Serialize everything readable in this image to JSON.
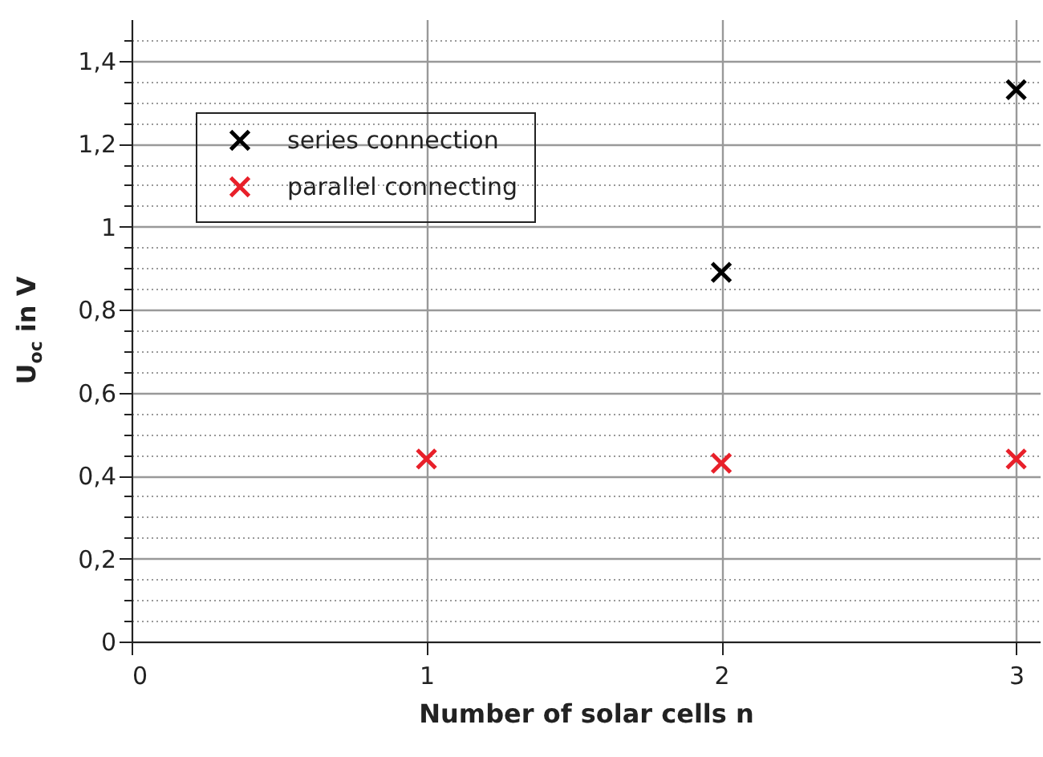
{
  "chart_data": {
    "type": "scatter",
    "xlabel": "Number of solar cells n",
    "ylabel": "U$_{oc}$ in V",
    "xlim": [
      0,
      3.08
    ],
    "xticks": [
      0,
      1,
      2,
      3
    ],
    "ylim": [
      0,
      1.5
    ],
    "yticks": [
      0,
      {
        "value": 0.05,
        "label": null
      },
      {
        "value": 0.1,
        "label": null
      },
      {
        "value": 0.15,
        "label": null
      },
      {
        "value": 0.2,
        "label": "0,2"
      },
      {
        "value": 0.25,
        "label": null
      },
      {
        "value": 0.3,
        "label": null
      },
      {
        "value": 0.35,
        "label": null
      },
      {
        "value": 0.4,
        "label": "0,4"
      },
      {
        "value": 0.45,
        "label": null
      },
      {
        "value": 0.5,
        "label": null
      },
      {
        "value": 0.55,
        "label": null
      },
      {
        "value": 0.6,
        "label": "0,6"
      },
      {
        "value": 0.65,
        "label": null
      },
      {
        "value": 0.7,
        "label": null
      },
      {
        "value": 0.75,
        "label": null
      },
      {
        "value": 0.8,
        "label": "0,8"
      },
      {
        "value": 0.85,
        "label": null
      },
      {
        "value": 0.9,
        "label": null
      },
      {
        "value": 0.95,
        "label": null
      },
      1,
      {
        "value": 1.05,
        "label": null
      },
      {
        "value": 1.1,
        "label": null
      },
      {
        "value": 1.15,
        "label": null
      },
      {
        "value": 1.2,
        "label": "1,2"
      },
      {
        "value": 1.25,
        "label": null
      },
      {
        "value": 1.3,
        "label": null
      },
      {
        "value": 1.35,
        "label": null
      },
      {
        "value": 1.4,
        "label": "1,4"
      },
      {
        "value": 1.45,
        "label": null
      }
    ],
    "series": [
      {
        "name": "series connection",
        "color": "#000000",
        "x": [
          2,
          3
        ],
        "values": [
          0.89,
          1.33
        ]
      },
      {
        "name": "parallel connecting",
        "color": "#e8202a",
        "x": [
          1,
          2,
          3
        ],
        "values": [
          0.44,
          0.43,
          0.44
        ]
      }
    ],
    "grid": true,
    "legend": "top left",
    "marker": "cross"
  }
}
